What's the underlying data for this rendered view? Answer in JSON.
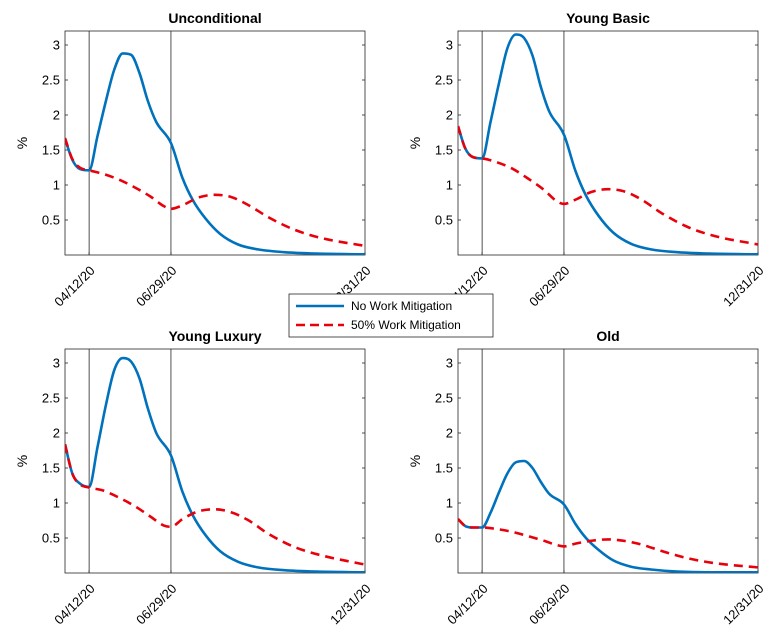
{
  "colors": {
    "no_mitigation": "#0072BD",
    "work_mitigation": "#E8000B",
    "axes": "#262626",
    "background": "#FFFFFF"
  },
  "legend": {
    "entries": [
      "No Work Mitigation",
      "50% Work Mitigation"
    ],
    "placement": "center"
  },
  "chart_data": [
    {
      "type": "line",
      "title": "Unconditional",
      "ylabel": "%",
      "ylim": [
        0,
        3.2
      ],
      "yticks": [
        "0.5",
        "1",
        "1.5",
        "2",
        "2.5",
        "3"
      ],
      "yticks_values": [
        0.5,
        1,
        1.5,
        2,
        2.5,
        3
      ],
      "xticks": [
        "04/12/20",
        "06/29/20",
        "12/31/20"
      ],
      "xticks_values": [
        "2020-04-12",
        "2020-06-29",
        "2020-12-31"
      ],
      "xlim": [
        "2020-03-20",
        "2020-12-31"
      ],
      "vlines": [
        "2020-04-12",
        "2020-06-29"
      ],
      "series": [
        {
          "name": "No Work Mitigation",
          "style": "solid",
          "x": [
            "2020-03-20",
            "2020-03-27",
            "2020-04-03",
            "2020-04-12",
            "2020-04-20",
            "2020-04-28",
            "2020-05-06",
            "2020-05-14",
            "2020-05-22",
            "2020-05-30",
            "2020-06-07",
            "2020-06-15",
            "2020-06-29",
            "2020-07-10",
            "2020-07-20",
            "2020-08-01",
            "2020-08-15",
            "2020-09-01",
            "2020-09-20",
            "2020-10-15",
            "2020-11-15",
            "2020-12-31"
          ],
          "y": [
            1.66,
            1.36,
            1.23,
            1.21,
            1.7,
            2.2,
            2.65,
            2.88,
            2.86,
            2.6,
            2.2,
            1.9,
            1.6,
            1.1,
            0.78,
            0.52,
            0.3,
            0.15,
            0.08,
            0.04,
            0.02,
            0.01
          ]
        },
        {
          "name": "50% Work Mitigation",
          "style": "dashed",
          "x": [
            "2020-03-20",
            "2020-03-27",
            "2020-04-03",
            "2020-04-12",
            "2020-04-25",
            "2020-05-10",
            "2020-05-25",
            "2020-06-10",
            "2020-06-22",
            "2020-06-29",
            "2020-07-10",
            "2020-07-25",
            "2020-08-10",
            "2020-08-25",
            "2020-09-10",
            "2020-10-01",
            "2020-10-25",
            "2020-11-20",
            "2020-12-31"
          ],
          "y": [
            1.67,
            1.37,
            1.25,
            1.21,
            1.16,
            1.08,
            0.97,
            0.83,
            0.7,
            0.66,
            0.71,
            0.82,
            0.86,
            0.83,
            0.72,
            0.53,
            0.36,
            0.24,
            0.13
          ]
        }
      ]
    },
    {
      "type": "line",
      "title": "Young Basic",
      "ylabel": "%",
      "ylim": [
        0,
        3.2
      ],
      "yticks": [
        "0.5",
        "1",
        "1.5",
        "2",
        "2.5",
        "3"
      ],
      "yticks_values": [
        0.5,
        1,
        1.5,
        2,
        2.5,
        3
      ],
      "xticks": [
        "04/12/20",
        "06/29/20",
        "12/31/20"
      ],
      "xticks_values": [
        "2020-04-12",
        "2020-06-29",
        "2020-12-31"
      ],
      "xlim": [
        "2020-03-20",
        "2020-12-31"
      ],
      "vlines": [
        "2020-04-12",
        "2020-06-29"
      ],
      "series": [
        {
          "name": "No Work Mitigation",
          "style": "solid",
          "x": [
            "2020-03-20",
            "2020-03-27",
            "2020-04-03",
            "2020-04-12",
            "2020-04-20",
            "2020-04-28",
            "2020-05-06",
            "2020-05-14",
            "2020-05-22",
            "2020-05-30",
            "2020-06-07",
            "2020-06-15",
            "2020-06-29",
            "2020-07-10",
            "2020-07-20",
            "2020-08-01",
            "2020-08-15",
            "2020-09-01",
            "2020-09-20",
            "2020-10-15",
            "2020-11-15",
            "2020-12-31"
          ],
          "y": [
            1.84,
            1.52,
            1.4,
            1.38,
            1.9,
            2.45,
            2.95,
            3.15,
            3.1,
            2.85,
            2.4,
            2.05,
            1.72,
            1.2,
            0.85,
            0.56,
            0.32,
            0.16,
            0.08,
            0.04,
            0.02,
            0.01
          ]
        },
        {
          "name": "50% Work Mitigation",
          "style": "dashed",
          "x": [
            "2020-03-20",
            "2020-03-27",
            "2020-04-03",
            "2020-04-12",
            "2020-04-25",
            "2020-05-10",
            "2020-05-25",
            "2020-06-10",
            "2020-06-22",
            "2020-06-29",
            "2020-07-10",
            "2020-07-25",
            "2020-08-10",
            "2020-08-25",
            "2020-09-10",
            "2020-10-01",
            "2020-10-25",
            "2020-11-20",
            "2020-12-31"
          ],
          "y": [
            1.84,
            1.52,
            1.4,
            1.38,
            1.33,
            1.24,
            1.1,
            0.93,
            0.77,
            0.73,
            0.79,
            0.9,
            0.94,
            0.91,
            0.8,
            0.59,
            0.4,
            0.27,
            0.15
          ]
        }
      ]
    },
    {
      "type": "line",
      "title": "Young Luxury",
      "ylabel": "%",
      "ylim": [
        0,
        3.2
      ],
      "yticks": [
        "0.5",
        "1",
        "1.5",
        "2",
        "2.5",
        "3"
      ],
      "yticks_values": [
        0.5,
        1,
        1.5,
        2,
        2.5,
        3
      ],
      "xticks": [
        "04/12/20",
        "06/29/20",
        "12/31/20"
      ],
      "xticks_values": [
        "2020-04-12",
        "2020-06-29",
        "2020-12-31"
      ],
      "xlim": [
        "2020-03-20",
        "2020-12-31"
      ],
      "vlines": [
        "2020-04-12",
        "2020-06-29"
      ],
      "series": [
        {
          "name": "No Work Mitigation",
          "style": "solid",
          "x": [
            "2020-03-20",
            "2020-03-27",
            "2020-04-03",
            "2020-04-12",
            "2020-04-20",
            "2020-04-28",
            "2020-05-06",
            "2020-05-14",
            "2020-05-22",
            "2020-05-30",
            "2020-06-07",
            "2020-06-15",
            "2020-06-29",
            "2020-07-10",
            "2020-07-20",
            "2020-08-01",
            "2020-08-15",
            "2020-09-01",
            "2020-09-20",
            "2020-10-15",
            "2020-11-15",
            "2020-12-31"
          ],
          "y": [
            1.84,
            1.42,
            1.28,
            1.23,
            1.8,
            2.4,
            2.9,
            3.07,
            3.02,
            2.78,
            2.35,
            2.0,
            1.68,
            1.16,
            0.82,
            0.54,
            0.31,
            0.16,
            0.08,
            0.04,
            0.02,
            0.01
          ]
        },
        {
          "name": "50% Work Mitigation",
          "style": "dashed",
          "x": [
            "2020-03-20",
            "2020-03-27",
            "2020-04-03",
            "2020-04-12",
            "2020-04-25",
            "2020-05-10",
            "2020-05-25",
            "2020-06-10",
            "2020-06-22",
            "2020-06-29",
            "2020-07-10",
            "2020-07-25",
            "2020-08-10",
            "2020-08-25",
            "2020-09-10",
            "2020-10-01",
            "2020-10-25",
            "2020-11-20",
            "2020-12-31"
          ],
          "y": [
            1.84,
            1.42,
            1.27,
            1.22,
            1.18,
            1.08,
            0.96,
            0.8,
            0.68,
            0.66,
            0.77,
            0.88,
            0.91,
            0.87,
            0.76,
            0.55,
            0.37,
            0.25,
            0.12
          ]
        }
      ]
    },
    {
      "type": "line",
      "title": "Old",
      "ylabel": "%",
      "ylim": [
        0,
        3.2
      ],
      "yticks": [
        "0.5",
        "1",
        "1.5",
        "2",
        "2.5",
        "3"
      ],
      "yticks_values": [
        0.5,
        1,
        1.5,
        2,
        2.5,
        3
      ],
      "xticks": [
        "04/12/20",
        "06/29/20",
        "12/31/20"
      ],
      "xticks_values": [
        "2020-04-12",
        "2020-06-29",
        "2020-12-31"
      ],
      "xlim": [
        "2020-03-20",
        "2020-12-31"
      ],
      "vlines": [
        "2020-04-12",
        "2020-06-29"
      ],
      "series": [
        {
          "name": "No Work Mitigation",
          "style": "solid",
          "x": [
            "2020-03-20",
            "2020-03-27",
            "2020-04-03",
            "2020-04-12",
            "2020-04-20",
            "2020-04-28",
            "2020-05-06",
            "2020-05-14",
            "2020-05-22",
            "2020-05-30",
            "2020-06-07",
            "2020-06-15",
            "2020-06-29",
            "2020-07-10",
            "2020-07-20",
            "2020-08-01",
            "2020-08-15",
            "2020-09-01",
            "2020-09-20",
            "2020-10-15",
            "2020-11-15",
            "2020-12-31"
          ],
          "y": [
            0.77,
            0.67,
            0.65,
            0.65,
            0.86,
            1.15,
            1.42,
            1.58,
            1.6,
            1.5,
            1.3,
            1.13,
            0.98,
            0.7,
            0.5,
            0.33,
            0.18,
            0.09,
            0.05,
            0.02,
            0.01,
            0.01
          ]
        },
        {
          "name": "50% Work Mitigation",
          "style": "dashed",
          "x": [
            "2020-03-20",
            "2020-03-27",
            "2020-04-03",
            "2020-04-12",
            "2020-04-25",
            "2020-05-10",
            "2020-05-25",
            "2020-06-10",
            "2020-06-22",
            "2020-06-29",
            "2020-07-10",
            "2020-07-25",
            "2020-08-10",
            "2020-08-25",
            "2020-09-10",
            "2020-10-01",
            "2020-10-25",
            "2020-11-20",
            "2020-12-31"
          ],
          "y": [
            0.77,
            0.67,
            0.65,
            0.65,
            0.63,
            0.59,
            0.53,
            0.46,
            0.4,
            0.38,
            0.42,
            0.46,
            0.48,
            0.46,
            0.41,
            0.31,
            0.21,
            0.14,
            0.08
          ]
        }
      ]
    }
  ]
}
